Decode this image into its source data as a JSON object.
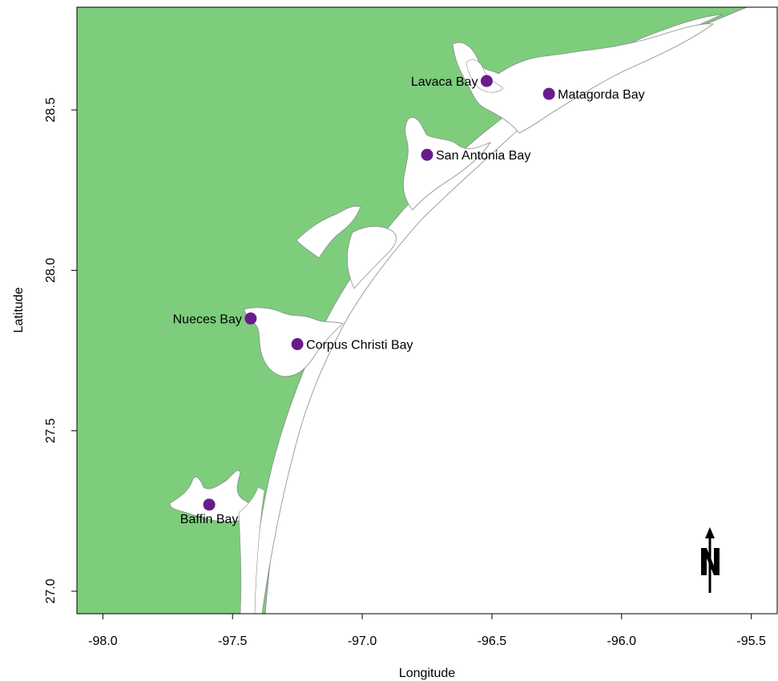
{
  "map": {
    "xlabel": "Longitude",
    "ylabel": "Latitude",
    "xlim": [
      -98.1,
      -95.4
    ],
    "ylim": [
      26.93,
      28.82
    ],
    "x_ticks": [
      -98.0,
      -97.5,
      -97.0,
      -96.5,
      -96.0,
      -95.5
    ],
    "x_tick_labels": [
      "-98.0",
      "-97.5",
      "-97.0",
      "-96.5",
      "-96.0",
      "-95.5"
    ],
    "y_ticks": [
      27.0,
      27.5,
      28.0,
      28.5
    ],
    "y_tick_labels": [
      "27.0",
      "27.5",
      "28.0",
      "28.5"
    ],
    "land_color": "#7dcd7d",
    "water_color": "#ffffff",
    "coastline_color": "#8c8c8c",
    "marker_color": "#6a1b8a",
    "north_arrow": {
      "label": "N",
      "icon": "north-arrow-icon"
    },
    "bays": [
      {
        "name": "Lavaca Bay",
        "lon": -96.52,
        "lat": 28.59,
        "label_side": "left"
      },
      {
        "name": "Matagorda Bay",
        "lon": -96.28,
        "lat": 28.55,
        "label_side": "right"
      },
      {
        "name": "San Antonia Bay",
        "lon": -96.75,
        "lat": 28.36,
        "label_side": "right"
      },
      {
        "name": "Nueces Bay",
        "lon": -97.43,
        "lat": 27.85,
        "label_side": "left"
      },
      {
        "name": "Corpus Christi Bay",
        "lon": -97.25,
        "lat": 27.77,
        "label_side": "right"
      },
      {
        "name": "Baffin Bay",
        "lon": -97.59,
        "lat": 27.27,
        "label_side": "below"
      }
    ]
  }
}
